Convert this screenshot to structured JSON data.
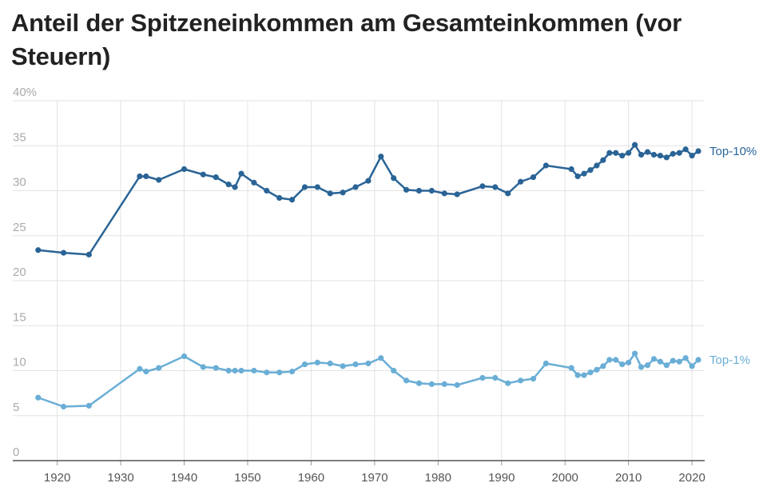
{
  "chart_data": {
    "type": "line",
    "title": "Anteil der Spitzeneinkommen am Gesamteinkommen (vor Steuern)",
    "xlabel": "",
    "ylabel": "",
    "ylim": [
      0,
      40
    ],
    "xlim": [
      1913,
      2022
    ],
    "y_ticks": [
      {
        "value": 40,
        "label": "40%"
      },
      {
        "value": 35,
        "label": "35"
      },
      {
        "value": 30,
        "label": "30"
      },
      {
        "value": 25,
        "label": "25"
      },
      {
        "value": 20,
        "label": "20"
      },
      {
        "value": 15,
        "label": "15"
      },
      {
        "value": 10,
        "label": "10"
      },
      {
        "value": 5,
        "label": "5"
      },
      {
        "value": 0,
        "label": "0"
      }
    ],
    "x_ticks": [
      {
        "value": 1920,
        "label": "1920"
      },
      {
        "value": 1930,
        "label": "1930"
      },
      {
        "value": 1940,
        "label": "1940"
      },
      {
        "value": 1950,
        "label": "1950"
      },
      {
        "value": 1960,
        "label": "1960"
      },
      {
        "value": 1970,
        "label": "1970"
      },
      {
        "value": 1980,
        "label": "1980"
      },
      {
        "value": 1990,
        "label": "1990"
      },
      {
        "value": 2000,
        "label": "2000"
      },
      {
        "value": 2010,
        "label": "2010"
      },
      {
        "value": 2020,
        "label": "2020"
      }
    ],
    "grid": true,
    "series": [
      {
        "name": "Top-10%",
        "color": "#2a6496",
        "points": [
          [
            1917,
            23.4
          ],
          [
            1921,
            23.1
          ],
          [
            1925,
            22.9
          ],
          [
            1933,
            31.6
          ],
          [
            1934,
            31.6
          ],
          [
            1936,
            31.2
          ],
          [
            1940,
            32.4
          ],
          [
            1943,
            31.8
          ],
          [
            1945,
            31.5
          ],
          [
            1947,
            30.7
          ],
          [
            1948,
            30.4
          ],
          [
            1949,
            31.9
          ],
          [
            1951,
            30.9
          ],
          [
            1953,
            30.0
          ],
          [
            1955,
            29.2
          ],
          [
            1957,
            29.0
          ],
          [
            1959,
            30.4
          ],
          [
            1961,
            30.4
          ],
          [
            1963,
            29.7
          ],
          [
            1965,
            29.8
          ],
          [
            1967,
            30.4
          ],
          [
            1969,
            31.1
          ],
          [
            1971,
            33.8
          ],
          [
            1973,
            31.4
          ],
          [
            1975,
            30.1
          ],
          [
            1977,
            30.0
          ],
          [
            1979,
            30.0
          ],
          [
            1981,
            29.7
          ],
          [
            1983,
            29.6
          ],
          [
            1987,
            30.5
          ],
          [
            1989,
            30.4
          ],
          [
            1991,
            29.7
          ],
          [
            1993,
            31.0
          ],
          [
            1995,
            31.5
          ],
          [
            1997,
            32.8
          ],
          [
            2001,
            32.4
          ],
          [
            2002,
            31.6
          ],
          [
            2003,
            31.9
          ],
          [
            2004,
            32.3
          ],
          [
            2005,
            32.8
          ],
          [
            2006,
            33.4
          ],
          [
            2007,
            34.2
          ],
          [
            2008,
            34.2
          ],
          [
            2009,
            33.9
          ],
          [
            2010,
            34.2
          ],
          [
            2011,
            35.1
          ],
          [
            2012,
            34.0
          ],
          [
            2013,
            34.3
          ],
          [
            2014,
            34.0
          ],
          [
            2015,
            33.9
          ],
          [
            2016,
            33.7
          ],
          [
            2017,
            34.1
          ],
          [
            2018,
            34.2
          ],
          [
            2019,
            34.6
          ],
          [
            2020,
            33.9
          ],
          [
            2021,
            34.4
          ]
        ]
      },
      {
        "name": "Top-1%",
        "color": "#6aaed6",
        "points": [
          [
            1917,
            7.0
          ],
          [
            1921,
            6.0
          ],
          [
            1925,
            6.1
          ],
          [
            1933,
            10.2
          ],
          [
            1934,
            9.9
          ],
          [
            1936,
            10.3
          ],
          [
            1940,
            11.6
          ],
          [
            1943,
            10.4
          ],
          [
            1945,
            10.3
          ],
          [
            1947,
            10.0
          ],
          [
            1948,
            10.0
          ],
          [
            1949,
            10.0
          ],
          [
            1951,
            10.0
          ],
          [
            1953,
            9.8
          ],
          [
            1955,
            9.8
          ],
          [
            1957,
            9.9
          ],
          [
            1959,
            10.7
          ],
          [
            1961,
            10.9
          ],
          [
            1963,
            10.8
          ],
          [
            1965,
            10.5
          ],
          [
            1967,
            10.7
          ],
          [
            1969,
            10.8
          ],
          [
            1971,
            11.4
          ],
          [
            1973,
            10.0
          ],
          [
            1975,
            8.9
          ],
          [
            1977,
            8.6
          ],
          [
            1979,
            8.5
          ],
          [
            1981,
            8.5
          ],
          [
            1983,
            8.4
          ],
          [
            1987,
            9.2
          ],
          [
            1989,
            9.2
          ],
          [
            1991,
            8.6
          ],
          [
            1993,
            8.9
          ],
          [
            1995,
            9.1
          ],
          [
            1997,
            10.8
          ],
          [
            2001,
            10.3
          ],
          [
            2002,
            9.5
          ],
          [
            2003,
            9.5
          ],
          [
            2004,
            9.8
          ],
          [
            2005,
            10.1
          ],
          [
            2006,
            10.5
          ],
          [
            2007,
            11.2
          ],
          [
            2008,
            11.2
          ],
          [
            2009,
            10.7
          ],
          [
            2010,
            10.9
          ],
          [
            2011,
            11.9
          ],
          [
            2012,
            10.4
          ],
          [
            2013,
            10.6
          ],
          [
            2014,
            11.3
          ],
          [
            2015,
            11.0
          ],
          [
            2016,
            10.6
          ],
          [
            2017,
            11.1
          ],
          [
            2018,
            11.0
          ],
          [
            2019,
            11.4
          ],
          [
            2020,
            10.5
          ],
          [
            2021,
            11.2
          ]
        ]
      }
    ]
  }
}
